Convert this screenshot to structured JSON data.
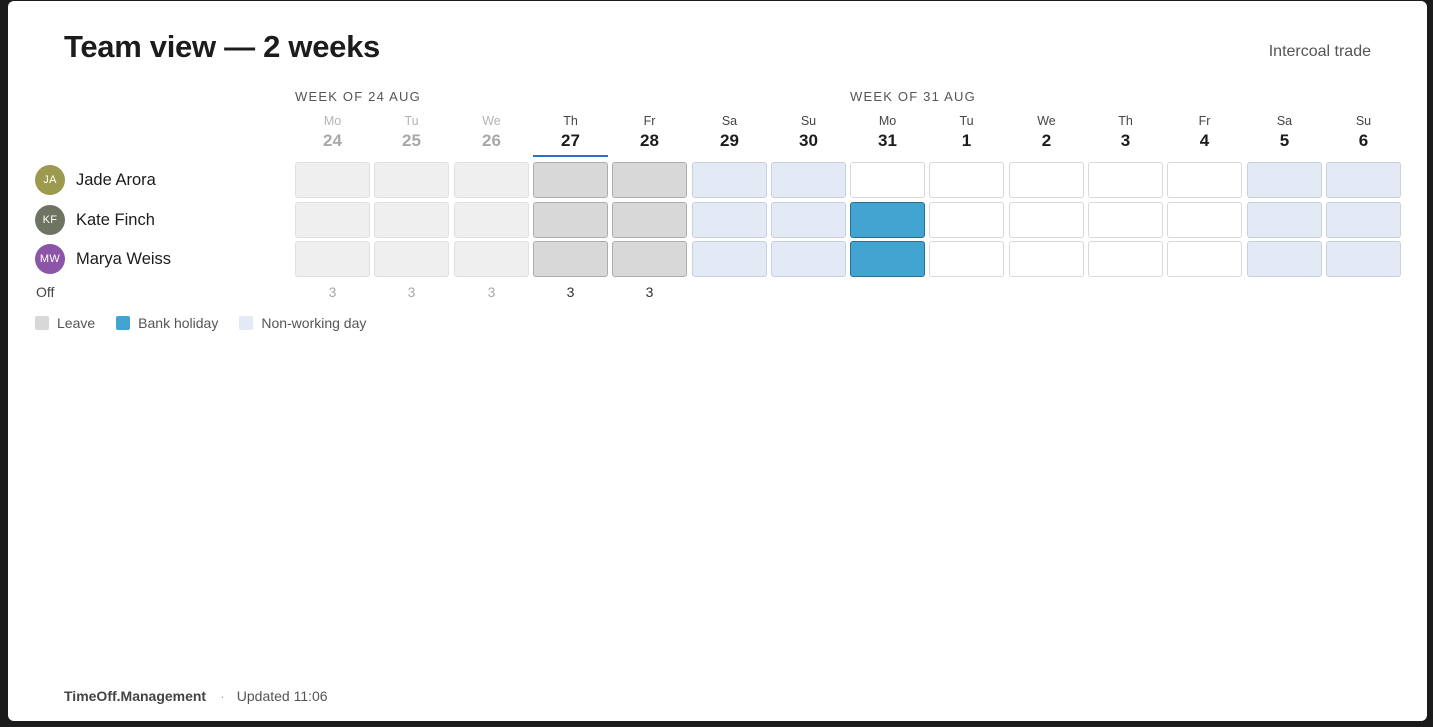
{
  "header": {
    "title": "Team view — 2 weeks",
    "company": "Intercoal trade"
  },
  "weeks": [
    {
      "label": "WEEK OF 24 AUG"
    },
    {
      "label": "WEEK OF 31 AUG"
    }
  ],
  "days": [
    {
      "dow": "Mo",
      "num": "24",
      "past": true
    },
    {
      "dow": "Tu",
      "num": "25",
      "past": true
    },
    {
      "dow": "We",
      "num": "26",
      "past": true
    },
    {
      "dow": "Th",
      "num": "27",
      "today": true
    },
    {
      "dow": "Fr",
      "num": "28"
    },
    {
      "dow": "Sa",
      "num": "29"
    },
    {
      "dow": "Su",
      "num": "30"
    },
    {
      "dow": "Mo",
      "num": "31"
    },
    {
      "dow": "Tu",
      "num": "1"
    },
    {
      "dow": "We",
      "num": "2"
    },
    {
      "dow": "Th",
      "num": "3"
    },
    {
      "dow": "Fr",
      "num": "4"
    },
    {
      "dow": "Sa",
      "num": "5"
    },
    {
      "dow": "Su",
      "num": "6"
    }
  ],
  "people": [
    {
      "initials": "JA",
      "name": "Jade Arora",
      "avatar_color": "#9b9a4f",
      "cells": [
        "leave-past",
        "leave-past",
        "leave-past",
        "leave",
        "leave",
        "nonworking",
        "nonworking",
        "empty",
        "empty",
        "empty",
        "empty",
        "empty",
        "nonworking",
        "nonworking"
      ]
    },
    {
      "initials": "KF",
      "name": "Kate Finch",
      "avatar_color": "#6e7362",
      "cells": [
        "leave-past",
        "leave-past",
        "leave-past",
        "leave",
        "leave",
        "nonworking",
        "nonworking",
        "holiday",
        "empty",
        "empty",
        "empty",
        "empty",
        "nonworking",
        "nonworking"
      ]
    },
    {
      "initials": "MW",
      "name": "Marya Weiss",
      "avatar_color": "#8c55a8",
      "cells": [
        "leave-past",
        "leave-past",
        "leave-past",
        "leave",
        "leave",
        "nonworking",
        "nonworking",
        "holiday",
        "empty",
        "empty",
        "empty",
        "empty",
        "nonworking",
        "nonworking"
      ]
    }
  ],
  "off_row": {
    "label": "Off",
    "counts": [
      "3",
      "3",
      "3",
      "3",
      "3",
      "",
      "",
      "",
      "",
      "",
      "",
      "",
      "",
      ""
    ]
  },
  "legend": [
    {
      "key": "leave",
      "label": "Leave"
    },
    {
      "key": "holiday",
      "label": "Bank holiday"
    },
    {
      "key": "nonworking",
      "label": "Non-working day"
    }
  ],
  "colors": {
    "leave": "#d8d8d8",
    "holiday": "#42a4d1",
    "nonworking": "#e4eaf5",
    "today_underline": "#2f6fc6"
  },
  "footer": {
    "brand": "TimeOff.Management",
    "separator": "·",
    "updated": "Updated 11:06"
  }
}
